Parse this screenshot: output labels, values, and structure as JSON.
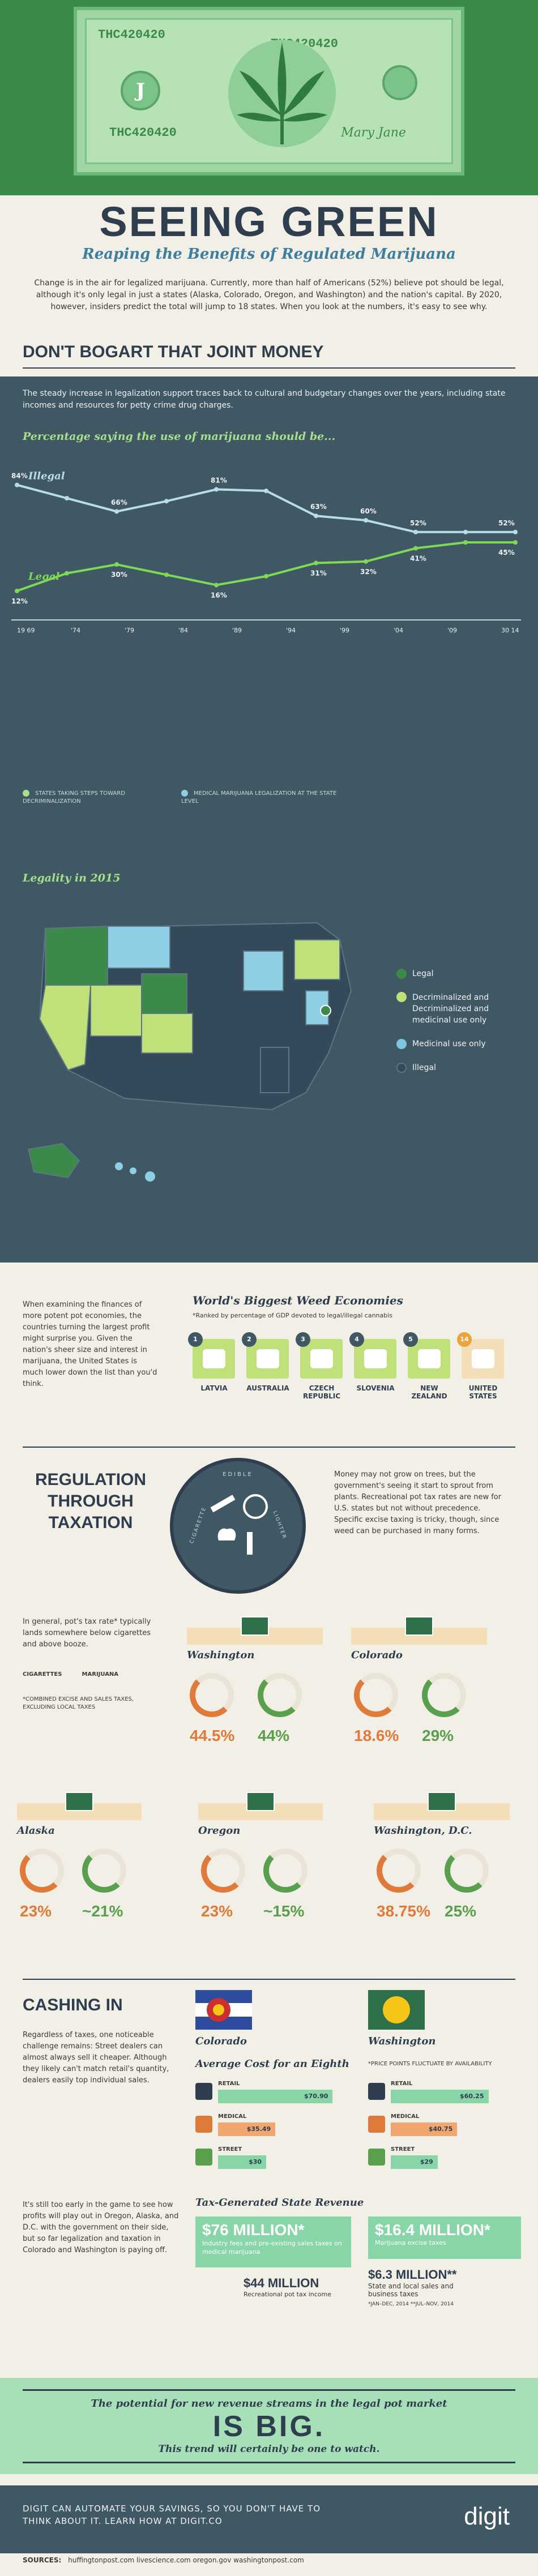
{
  "header": {
    "serial_left": "THC420420",
    "serial_right": "THC420420",
    "seal_letter": "J",
    "title": "SEEING GREEN",
    "subtitle": "Reaping the Benefits of Regulated Marijuana"
  },
  "intro": "Change is in the air for legalized marijuana. Currently, more than half of Americans (52%) believe pot should be legal, although it's only legal in just a states (Alaska, Colorado, Oregon, and Washington) and the nation's capital. By 2020, however, insiders predict the total will jump to 18 states. When you look at the numbers, it's easy to see why.",
  "section1": {
    "heading": "DON'T BOGART THAT JOINT MONEY",
    "lead": "The steady increase in legalization support traces back to cultural and budgetary changes over the years, including state incomes and resources for petty crime drug charges."
  },
  "chart_data": {
    "type": "line",
    "title": "Percentage saying the use of marijuana should be...",
    "x": [
      "1969",
      "1972",
      "1979",
      "1985",
      "1990",
      "1995",
      "2000",
      "2005",
      "2010",
      "2013",
      "2014"
    ],
    "series": [
      {
        "name": "Illegal",
        "color": "#b9dde6",
        "values": [
          84,
          75,
          66,
          73,
          81,
          80,
          63,
          60,
          52,
          52,
          52
        ]
      },
      {
        "name": "Legal",
        "color": "#7ed957",
        "values": [
          12,
          24,
          30,
          23,
          16,
          22,
          31,
          32,
          41,
          45,
          45
        ]
      }
    ],
    "labels": [
      "84%",
      "66%",
      "81%",
      "63%",
      "60%",
      "52%",
      "52%",
      "12%",
      "30%",
      "16%",
      "31%",
      "32%",
      "41%",
      "45%"
    ],
    "ylim": [
      0,
      100
    ],
    "axis_ticks": [
      "19 69",
      "'74",
      "'79",
      "'84",
      "'89",
      "'94",
      "'99",
      "'04",
      "'09",
      "30 14"
    ],
    "legend": [
      "STATES TAKING STEPS TOWARD DECRIMINALIZATION",
      "MEDICAL MARIJUANA LEGALIZATION AT THE STATE LEVEL"
    ]
  },
  "map": {
    "title": "Legality in 2015",
    "legend": [
      {
        "label": "Legal",
        "color": "#3c8a4a"
      },
      {
        "label": "Decriminalized and Decriminalized and medicinal use only",
        "color": "#c0e07a"
      },
      {
        "label": "Medicinal use only",
        "color": "#7cc6e0"
      },
      {
        "label": "Illegal",
        "color": "#34495a"
      }
    ]
  },
  "economies": {
    "text": "When examining the finances of more potent pot economies, the countries turning the largest profit might surprise you. Given the nation's sheer size and interest in marijuana, the United States is much lower down the list than you'd think.",
    "title": "World's Biggest Weed Economies",
    "note": "*Ranked by percentage of GDP devoted to legal/illegal cannabis",
    "items": [
      {
        "rank": "1",
        "name": "LATVIA"
      },
      {
        "rank": "2",
        "name": "AUSTRALIA"
      },
      {
        "rank": "3",
        "name": "CZECH REPUBLIC"
      },
      {
        "rank": "4",
        "name": "SLOVENIA"
      },
      {
        "rank": "5",
        "name": "NEW ZEALAND"
      },
      {
        "rank": "14",
        "name": "UNITED STATES"
      }
    ]
  },
  "regulation": {
    "heading": "REGULATION THROUGH TAXATION",
    "badge_top": "EDIBLE",
    "badge_left": "CIGARETTE",
    "badge_right": "LIGHTER",
    "text": "Money may not grow on trees, but the government's seeing it start to sprout from plants. Recreational pot tax rates are new for U.S. states but not without precedence. Specific excise taxing is tricky, though, since weed can be purchased in many forms.",
    "compare": "In general, pot's tax rate* typically lands somewhere below cigarettes and above booze.",
    "cig_label": "CIGARETTES",
    "mj_label": "MARIJUANA",
    "footnote": "*COMBINED EXCISE AND SALES TAXES, EXCLUDING LOCAL TAXES",
    "states": [
      {
        "name": "Washington",
        "cig": "44.5%",
        "mj": "44%"
      },
      {
        "name": "Colorado",
        "cig": "18.6%",
        "mj": "29%"
      },
      {
        "name": "Alaska",
        "cig": "23%",
        "mj": "~21%"
      },
      {
        "name": "Oregon",
        "cig": "23%",
        "mj": "~15%"
      },
      {
        "name": "Washington, D.C.",
        "cig": "38.75%",
        "mj": "25%"
      }
    ]
  },
  "cashing": {
    "heading": "CASHING IN",
    "text1": "Regardless of taxes, one noticeable challenge remains: Street dealers can almost always sell it cheaper. Although they likely can't match retail's quantity, dealers easily top individual sales.",
    "state_left": "Colorado",
    "state_right": "Washington",
    "avg_title": "Average Cost for an Eighth",
    "avg_note": "*PRICE POINTS FLUCTUATE BY AVAILABILITY",
    "co_prices": [
      {
        "label": "RETAIL",
        "value": "$70.90",
        "frac": 0.88
      },
      {
        "label": "MEDICAL",
        "value": "$35.49",
        "frac": 0.44
      },
      {
        "label": "STREET",
        "value": "$30",
        "frac": 0.37
      }
    ],
    "wa_prices": [
      {
        "label": "RETAIL",
        "value": "$60.25",
        "frac": 0.75
      },
      {
        "label": "MEDICAL",
        "value": "$40.75",
        "frac": 0.51
      },
      {
        "label": "STREET",
        "value": "$29",
        "frac": 0.36
      }
    ],
    "text2": "It's still too early in the game to see how profits will play out in Oregon, Alaska, and D.C. with the government on their side, but so far legalization and taxation in Colorado and Washington is paying off.",
    "rev_title": "Tax-Generated State Revenue",
    "co_rev_big": "$76 MILLION*",
    "co_rev_big_sub": "Industry fees and pre-existing sales taxes on medical marijuana",
    "co_rev_small": "$44 MILLION",
    "co_rev_small_sub": "Recreational pot tax income",
    "wa_rev_big": "$16.4 MILLION*",
    "wa_rev_big_sub": "Marijuana excise taxes",
    "wa_rev_small": "$6.3 MILLION**",
    "wa_rev_small_sub": "State and local sales and business taxes",
    "wa_rev_note": "*JAN–DEC, 2014   **JUL–NOV, 2014"
  },
  "closing": {
    "line1": "The potential for new revenue streams in the legal pot market",
    "big": "IS BIG.",
    "line2": "This trend will certainly be one to watch."
  },
  "footer": {
    "cta": "DIGIT CAN AUTOMATE YOUR SAVINGS, SO YOU DON'T HAVE TO THINK ABOUT IT. LEARN HOW AT DIGIT.CO",
    "logo": "digit",
    "sources_label": "SOURCES:",
    "sources": "huffingtonpost.com   livescience.com   oregon.gov   washingtonpost.com"
  }
}
